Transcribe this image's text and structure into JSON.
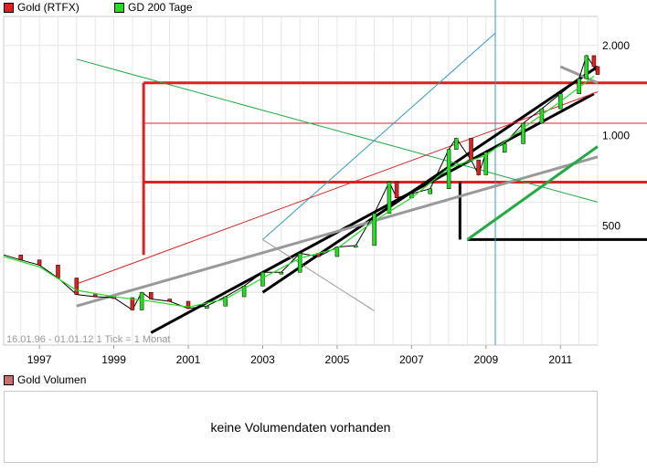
{
  "legend": {
    "series1_label": "Gold (RTFX)",
    "series1_color": "#e02020",
    "series2_label": "GD 200 Tage",
    "series2_color": "#22dd22"
  },
  "info_text": "16.01.96 - 01.01.12   1 Tick = 1 Monat",
  "volume": {
    "legend_label": "Gold Volumen",
    "legend_color": "#c87070",
    "empty_message": "keine Volumendaten vorhanden"
  },
  "chart_data": {
    "type": "candlestick",
    "x_unit": "year",
    "xlim": [
      1996.04,
      2012.0
    ],
    "ylim": [
      200,
      2500
    ],
    "y_scale": "log",
    "x_tick_labels": [
      "1997",
      "1999",
      "2001",
      "2003",
      "2005",
      "2007",
      "2009",
      "2011"
    ],
    "x_ticks": [
      1997,
      1999,
      2001,
      2003,
      2005,
      2007,
      2009,
      2011
    ],
    "y_tick_labels": [
      "500",
      "1.000",
      "2.000"
    ],
    "y_ticks": [
      500,
      1000,
      2000
    ],
    "grid": true,
    "legend_position": "top-left",
    "series": [
      {
        "name": "Gold (RTFX)",
        "type": "price",
        "points": [
          [
            1996.04,
            400
          ],
          [
            1996.5,
            385
          ],
          [
            1997.0,
            370
          ],
          [
            1997.5,
            335
          ],
          [
            1998.0,
            295
          ],
          [
            1998.5,
            290
          ],
          [
            1999.0,
            288
          ],
          [
            1999.5,
            262
          ],
          [
            1999.75,
            300
          ],
          [
            2000.0,
            285
          ],
          [
            2000.5,
            280
          ],
          [
            2001.0,
            265
          ],
          [
            2001.5,
            270
          ],
          [
            2002.0,
            290
          ],
          [
            2002.5,
            315
          ],
          [
            2003.0,
            350
          ],
          [
            2003.5,
            350
          ],
          [
            2004.0,
            405
          ],
          [
            2004.5,
            395
          ],
          [
            2005.0,
            425
          ],
          [
            2005.5,
            430
          ],
          [
            2006.0,
            550
          ],
          [
            2006.4,
            700
          ],
          [
            2006.6,
            620
          ],
          [
            2007.0,
            640
          ],
          [
            2007.5,
            665
          ],
          [
            2008.0,
            900
          ],
          [
            2008.2,
            980
          ],
          [
            2008.6,
            830
          ],
          [
            2008.8,
            740
          ],
          [
            2009.0,
            880
          ],
          [
            2009.5,
            940
          ],
          [
            2010.0,
            1100
          ],
          [
            2010.5,
            1230
          ],
          [
            2011.0,
            1380
          ],
          [
            2011.5,
            1550
          ],
          [
            2011.7,
            1850
          ],
          [
            2011.9,
            1700
          ],
          [
            2012.0,
            1600
          ]
        ]
      },
      {
        "name": "GD 200 Tage",
        "type": "moving_average",
        "points": [
          [
            1996.04,
            395
          ],
          [
            1997.0,
            365
          ],
          [
            1998.0,
            305
          ],
          [
            1999.0,
            290
          ],
          [
            2000.0,
            280
          ],
          [
            2001.0,
            268
          ],
          [
            2002.0,
            285
          ],
          [
            2003.0,
            335
          ],
          [
            2004.0,
            390
          ],
          [
            2005.0,
            420
          ],
          [
            2006.0,
            520
          ],
          [
            2007.0,
            620
          ],
          [
            2008.0,
            780
          ],
          [
            2009.0,
            860
          ],
          [
            2010.0,
            1060
          ],
          [
            2011.0,
            1300
          ],
          [
            2011.9,
            1580
          ]
        ]
      }
    ],
    "horizontal_lines": [
      {
        "y": 1500,
        "color": "#e02020",
        "width": 3
      },
      {
        "y": 1100,
        "color": "#e02020",
        "width": 1
      },
      {
        "y": 700,
        "color": "#e02020",
        "width": 3
      },
      {
        "y": 450,
        "color": "#000000",
        "width": 3
      }
    ],
    "vertical_lines": [
      {
        "x": 2009.25,
        "color": "#3399cc",
        "width": 1
      }
    ],
    "trend_lines": [
      {
        "from": [
          2000.0,
          220
        ],
        "to": [
          2011.9,
          1380
        ],
        "color": "#000000",
        "width": 3
      },
      {
        "from": [
          2003.0,
          300
        ],
        "to": [
          2012.0,
          1700
        ],
        "color": "#000000",
        "width": 3
      },
      {
        "from": [
          1998.0,
          270
        ],
        "to": [
          2012.0,
          850
        ],
        "color": "#999999",
        "width": 3
      },
      {
        "from": [
          2008.5,
          450
        ],
        "to": [
          2012.0,
          920
        ],
        "color": "#22aa44",
        "width": 3
      },
      {
        "from": [
          2011.0,
          1700
        ],
        "to": [
          2012.0,
          1500
        ],
        "color": "#999999",
        "width": 3
      },
      {
        "from": [
          1998.0,
          1800
        ],
        "to": [
          2012.0,
          600
        ],
        "color": "#22aa44",
        "width": 1
      },
      {
        "from": [
          2003.0,
          450
        ],
        "to": [
          2009.25,
          2200
        ],
        "color": "#3399cc",
        "width": 1
      },
      {
        "from": [
          1998.0,
          320
        ],
        "to": [
          2012.0,
          1400
        ],
        "color": "#e02020",
        "width": 1
      },
      {
        "from": [
          2003.0,
          450
        ],
        "to": [
          2006.0,
          260
        ],
        "color": "#999999",
        "width": 1
      }
    ],
    "annotations": [
      {
        "text": "2.000",
        "y": 2000
      },
      {
        "text": "1.000",
        "y": 1000
      },
      {
        "text": "500",
        "y": 500
      }
    ]
  }
}
